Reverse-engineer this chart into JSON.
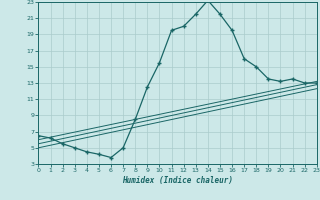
{
  "xlabel": "Humidex (Indice chaleur)",
  "bg_color": "#cce8e8",
  "grid_color": "#aacccc",
  "line_color": "#1a6666",
  "xlim": [
    0,
    23
  ],
  "ylim": [
    3,
    23
  ],
  "xticks": [
    0,
    1,
    2,
    3,
    4,
    5,
    6,
    7,
    8,
    9,
    10,
    11,
    12,
    13,
    14,
    15,
    16,
    17,
    18,
    19,
    20,
    21,
    22,
    23
  ],
  "yticks": [
    3,
    5,
    7,
    9,
    11,
    13,
    15,
    17,
    19,
    21,
    23
  ],
  "main_x": [
    0,
    1,
    2,
    3,
    4,
    5,
    6,
    7,
    8,
    9,
    10,
    11,
    12,
    13,
    14,
    15,
    16,
    17,
    18,
    19,
    20,
    21,
    22,
    23
  ],
  "main_y": [
    6.5,
    6.2,
    5.5,
    5.0,
    4.5,
    4.2,
    3.8,
    5.0,
    8.5,
    12.5,
    15.5,
    19.5,
    20.0,
    21.5,
    23.2,
    21.5,
    19.5,
    16.0,
    15.0,
    13.5,
    13.2,
    13.5,
    13.0,
    13.0
  ],
  "line2_x": [
    0,
    23
  ],
  "line2_y": [
    6.0,
    13.2
  ],
  "line3_x": [
    0,
    23
  ],
  "line3_y": [
    5.5,
    12.8
  ],
  "line4_x": [
    0,
    23
  ],
  "line4_y": [
    5.0,
    12.3
  ]
}
